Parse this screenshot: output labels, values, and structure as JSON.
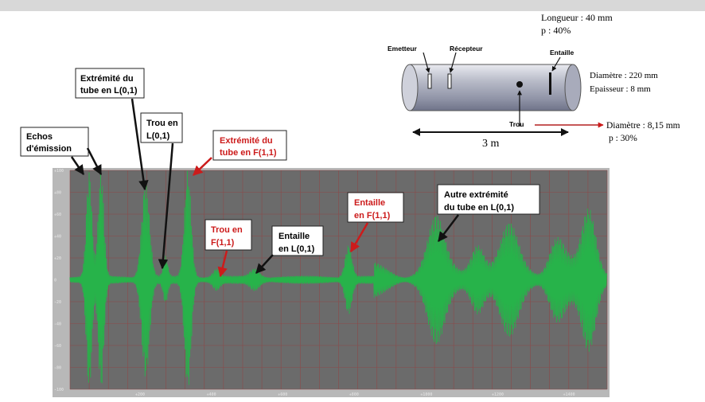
{
  "specimen": {
    "notch_length": "Longueur : 40 mm",
    "notch_depth": "p : 40%",
    "emitter_label": "Emetteur",
    "receiver_label": "Récepteur",
    "notch_label": "Entaille",
    "hole_label": "Trou",
    "diameter": "Diamètre : 220 mm",
    "thickness": "Epaisseur : 8 mm",
    "hole_diameter": "Diamètre : 8,15 mm",
    "hole_depth": "p : 30%",
    "length": "3 m"
  },
  "annotations": {
    "emission_line1": "Echos",
    "emission_line2": "d'émission",
    "tube_end_L_line1": "Extrémité du",
    "tube_end_L_line2": "tube en L(0,1)",
    "hole_L_line1": "Trou en",
    "hole_L_line2": "L(0,1)",
    "tube_end_F_line1": "Extrémité du",
    "tube_end_F_line2": "tube en F(1,1)",
    "hole_F_line1": "Trou en",
    "hole_F_line2": "F(1,1)",
    "notch_L_line1": "Entaille",
    "notch_L_line2": "en L(0,1)",
    "notch_F_line1": "Entaille",
    "notch_F_line2": "en F(1,1)",
    "other_end_line1": "Autre extrémité",
    "other_end_line2": "du tube en L(0,1)"
  },
  "axes": {
    "y_ticks": [
      "+100",
      "+80",
      "+60",
      "+40",
      "+20",
      "0",
      "-20",
      "-40",
      "-60",
      "-80",
      "-100"
    ],
    "x_ticks": [
      "+200",
      "+400",
      "+600",
      "+800",
      "+1000",
      "+1200",
      "+1400"
    ]
  },
  "colors": {
    "plot_bg": "#6b6b6b",
    "signal": "#27b34a",
    "grid": "#8c4a4a",
    "red_text": "#cc1b1b"
  }
}
